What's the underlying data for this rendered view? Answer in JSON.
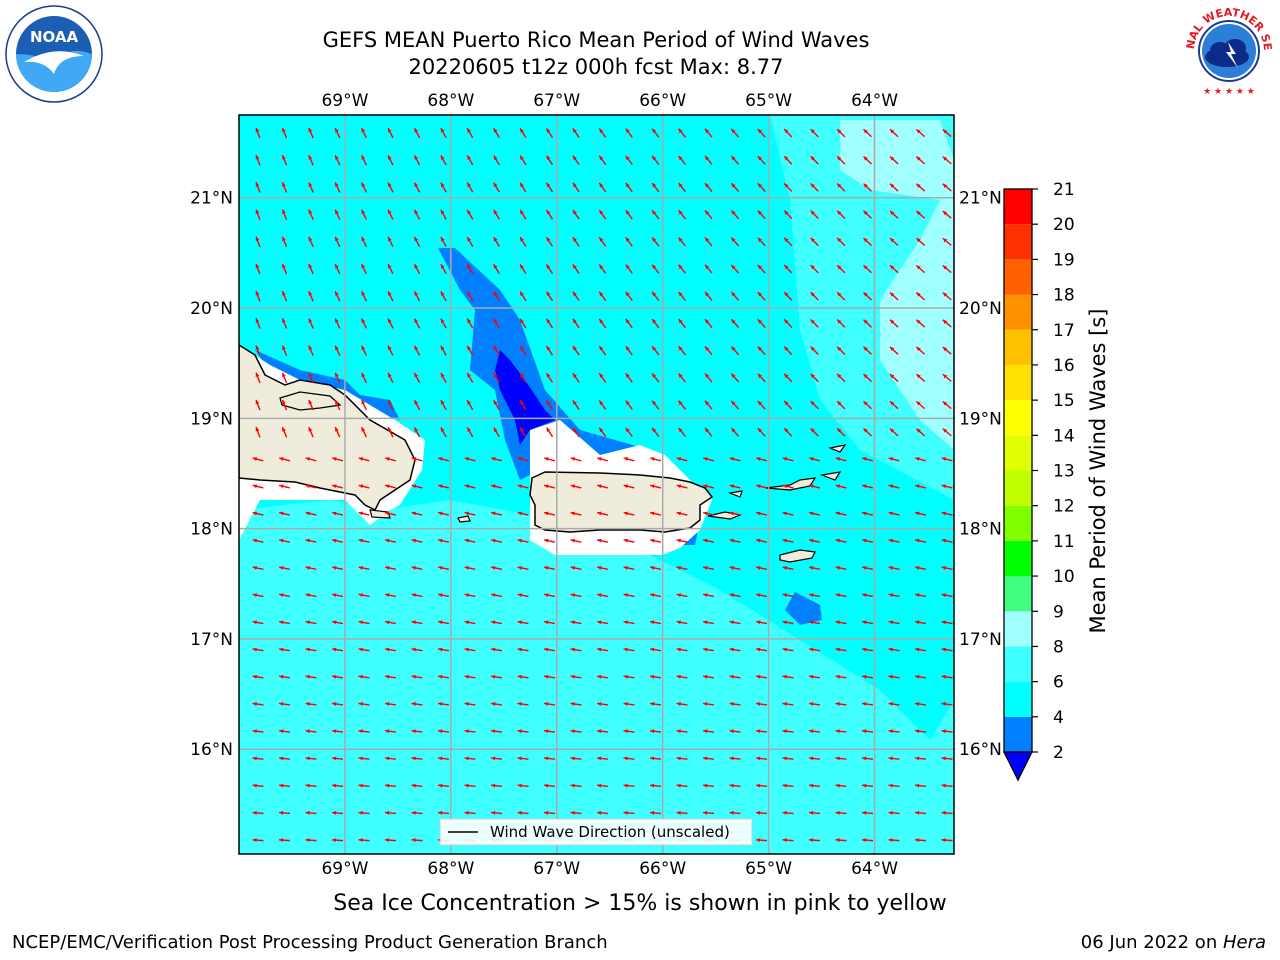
{
  "title": {
    "line1": "GEFS MEAN Puerto Rico Mean Period of Wind Waves",
    "line2": "20220605 t12z 000h fcst   Max: 8.77"
  },
  "logos": {
    "left": "NOAA",
    "left_ring": "NATIONAL OCEANIC AND ATMOSPHERIC ADMINISTRATION · U.S. DEPARTMENT OF COMMERCE",
    "right_ring": "NATIONAL WEATHER SERVICE"
  },
  "map": {
    "lon_labels": [
      "69°W",
      "68°W",
      "67°W",
      "66°W",
      "65°W",
      "64°W"
    ],
    "lon_values": [
      -69,
      -68,
      -67,
      -66,
      -65,
      -64
    ],
    "lat_labels": [
      "21°N",
      "20°N",
      "19°N",
      "18°N",
      "17°N",
      "16°N"
    ],
    "lat_values": [
      21,
      20,
      19,
      18,
      17,
      16
    ],
    "extent": {
      "lon": [
        -70,
        -63.25
      ],
      "lat": [
        15.05,
        21.75
      ]
    },
    "legend_label": "Wind Wave Direction (unscaled)",
    "vector_color": "#ff0000",
    "land_color": "#efecdc"
  },
  "colorbar": {
    "label": "Mean Period of Wind Waves [s]",
    "ticks": [
      2,
      4,
      6,
      8,
      9,
      10,
      11,
      12,
      13,
      14,
      15,
      16,
      17,
      18,
      19,
      20,
      21
    ],
    "levels": [
      {
        "from": 2,
        "to": 4,
        "color": "#0080ff"
      },
      {
        "from": 4,
        "to": 6,
        "color": "#00ffff"
      },
      {
        "from": 6,
        "to": 8,
        "color": "#40ffff"
      },
      {
        "from": 8,
        "to": 9,
        "color": "#a0ffff"
      },
      {
        "from": 9,
        "to": 10,
        "color": "#40ff80"
      },
      {
        "from": 10,
        "to": 11,
        "color": "#00ff00"
      },
      {
        "from": 11,
        "to": 12,
        "color": "#80ff00"
      },
      {
        "from": 12,
        "to": 13,
        "color": "#c0ff00"
      },
      {
        "from": 13,
        "to": 14,
        "color": "#e0ff00"
      },
      {
        "from": 14,
        "to": 15,
        "color": "#ffff00"
      },
      {
        "from": 15,
        "to": 16,
        "color": "#ffe000"
      },
      {
        "from": 16,
        "to": 17,
        "color": "#ffc000"
      },
      {
        "from": 17,
        "to": 18,
        "color": "#ff9000"
      },
      {
        "from": 18,
        "to": 19,
        "color": "#ff6000"
      },
      {
        "from": 19,
        "to": 20,
        "color": "#ff3000"
      },
      {
        "from": 20,
        "to": 21,
        "color": "#ff0000"
      }
    ],
    "under_color": "#0000ff"
  },
  "footnote": "Sea Ice Concentration > 15% is shown in pink to yellow",
  "footer": {
    "left": "NCEP/EMC/Verification Post Processing Product Generation Branch",
    "right_date": "06 Jun 2022 on ",
    "right_machine": "Hera"
  }
}
